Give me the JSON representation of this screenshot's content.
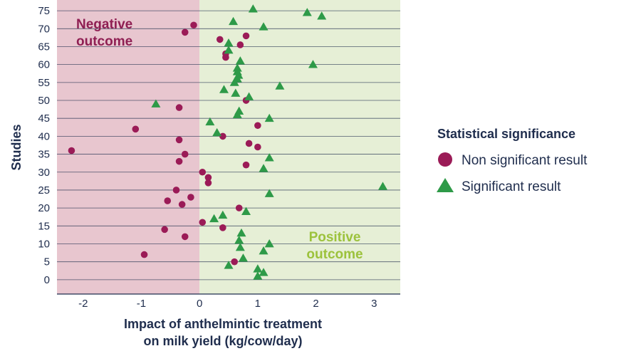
{
  "colors": {
    "negative_region": "#e8c6cf",
    "positive_region": "#e6efd6",
    "non_significant": "#9b1b57",
    "significant": "#2e9a48",
    "negative_label": "#8f1f53",
    "positive_label": "#9cc23c",
    "axis": "#1f2d4d",
    "grid": "#1f2d4d"
  },
  "legend": {
    "title": "Statistical significance",
    "items": [
      {
        "label": "Non significant result",
        "marker": "circle"
      },
      {
        "label": "Significant result",
        "marker": "triangle"
      }
    ]
  },
  "regions": {
    "negative": {
      "line1": "Negative",
      "line2": "outcome"
    },
    "positive": {
      "line1": "Positive",
      "line2": "outcome"
    }
  },
  "chart_data": {
    "type": "scatter",
    "title": "",
    "xlabel_line1": "Impact of anthelmintic treatment",
    "xlabel_line2": "on milk yield (kg/cow/day)",
    "ylabel": "Studies",
    "xlim": [
      -2.45,
      3.45
    ],
    "ylim": [
      -4,
      78
    ],
    "x_ticks": [
      -2,
      -1,
      0,
      1,
      2,
      3
    ],
    "y_ticks": [
      0,
      5,
      10,
      15,
      20,
      25,
      30,
      35,
      40,
      45,
      50,
      55,
      60,
      65,
      70,
      75
    ],
    "grid": "horizontal",
    "series": [
      {
        "name": "Non significant result",
        "marker": "circle",
        "points": [
          [
            -0.95,
            7
          ],
          [
            0.6,
            5
          ],
          [
            -0.25,
            12
          ],
          [
            -0.6,
            14
          ],
          [
            0.05,
            16
          ],
          [
            0.4,
            14.5
          ],
          [
            -0.3,
            21
          ],
          [
            -0.55,
            22
          ],
          [
            -0.15,
            23
          ],
          [
            -0.4,
            25
          ],
          [
            0.68,
            20
          ],
          [
            0.15,
            27
          ],
          [
            0.15,
            28.5
          ],
          [
            0.05,
            30
          ],
          [
            0.8,
            32
          ],
          [
            -0.35,
            33
          ],
          [
            -0.25,
            35
          ],
          [
            -2.2,
            36
          ],
          [
            0.85,
            38
          ],
          [
            1.0,
            37
          ],
          [
            -0.35,
            39
          ],
          [
            0.4,
            40
          ],
          [
            -1.1,
            42
          ],
          [
            1.0,
            43
          ],
          [
            -0.35,
            48
          ],
          [
            0.8,
            50
          ],
          [
            0.45,
            62
          ],
          [
            0.45,
            63
          ],
          [
            0.35,
            67
          ],
          [
            0.7,
            65.5
          ],
          [
            0.8,
            68
          ],
          [
            -0.25,
            69
          ],
          [
            -0.1,
            71
          ]
        ]
      },
      {
        "name": "Significant result",
        "marker": "triangle",
        "points": [
          [
            1.0,
            1
          ],
          [
            1.1,
            2
          ],
          [
            1.0,
            3
          ],
          [
            0.5,
            4
          ],
          [
            0.75,
            6
          ],
          [
            1.1,
            8
          ],
          [
            0.7,
            9
          ],
          [
            1.2,
            10
          ],
          [
            0.68,
            11
          ],
          [
            0.72,
            13
          ],
          [
            0.25,
            17
          ],
          [
            0.4,
            18
          ],
          [
            0.8,
            19
          ],
          [
            1.2,
            24
          ],
          [
            3.15,
            26
          ],
          [
            1.1,
            31
          ],
          [
            1.2,
            34
          ],
          [
            0.3,
            41
          ],
          [
            0.18,
            44
          ],
          [
            1.2,
            45
          ],
          [
            0.65,
            46
          ],
          [
            0.68,
            47
          ],
          [
            -0.75,
            49
          ],
          [
            0.85,
            51
          ],
          [
            0.62,
            52
          ],
          [
            0.42,
            53
          ],
          [
            1.38,
            54
          ],
          [
            0.6,
            55
          ],
          [
            0.65,
            56
          ],
          [
            0.67,
            57
          ],
          [
            0.65,
            58
          ],
          [
            0.65,
            59
          ],
          [
            1.95,
            60
          ],
          [
            0.7,
            61
          ],
          [
            0.5,
            64
          ],
          [
            0.5,
            66
          ],
          [
            0.58,
            72
          ],
          [
            1.1,
            70.5
          ],
          [
            2.1,
            73.5
          ],
          [
            1.85,
            74.5
          ],
          [
            0.92,
            75.5
          ]
        ]
      }
    ]
  }
}
